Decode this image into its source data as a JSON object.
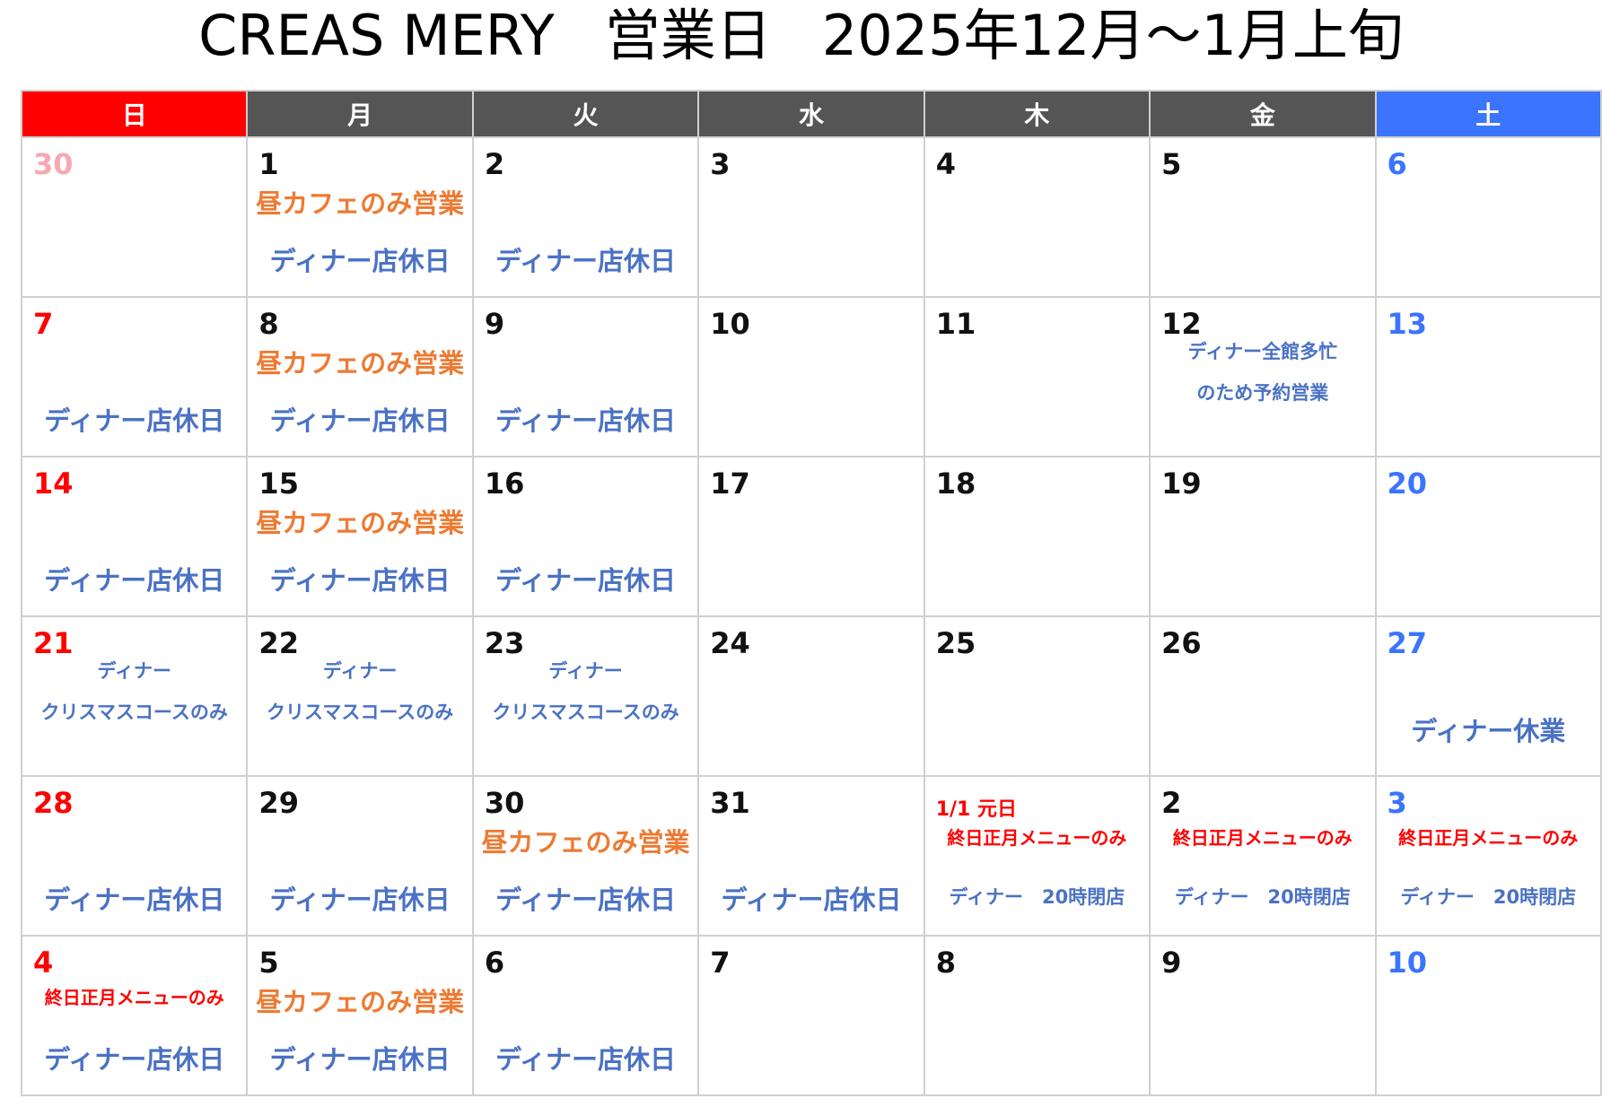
{
  "title": {
    "left": "CREAS MERY",
    "middle": "営業日",
    "right": "2025年12月～1月上旬"
  },
  "weekdays": [
    "日",
    "月",
    "火",
    "水",
    "木",
    "金",
    "土"
  ],
  "colors": {
    "sunday": "#ff0000",
    "weekday_header": "#555555",
    "saturday": "#3a74ff",
    "lunch": "#ee7a32",
    "dinner": "#4a72c4",
    "newyear": "#ff0000",
    "prev_month_day": "#f7a8b5"
  },
  "weeks": [
    [
      {
        "day": "30",
        "day_color": "pink",
        "notes": []
      },
      {
        "day": "1",
        "day_color": "black",
        "notes": [
          {
            "text": "昼カフェのみ営業",
            "color": "orange",
            "size": "lg",
            "row": 1
          },
          {
            "text": "ディナー店休日",
            "color": "navy",
            "size": "lg",
            "row": 3
          }
        ]
      },
      {
        "day": "2",
        "day_color": "black",
        "notes": [
          {
            "text": "ディナー店休日",
            "color": "navy",
            "size": "lg",
            "row": 3
          }
        ]
      },
      {
        "day": "3",
        "day_color": "black",
        "notes": []
      },
      {
        "day": "4",
        "day_color": "black",
        "notes": []
      },
      {
        "day": "5",
        "day_color": "black",
        "notes": []
      },
      {
        "day": "6",
        "day_color": "blue",
        "notes": []
      }
    ],
    [
      {
        "day": "7",
        "day_color": "red",
        "notes": [
          {
            "text": "ディナー店休日",
            "color": "navy",
            "size": "lg",
            "row": 3
          }
        ]
      },
      {
        "day": "8",
        "day_color": "black",
        "notes": [
          {
            "text": "昼カフェのみ営業",
            "color": "orange",
            "size": "lg",
            "row": 1
          },
          {
            "text": "ディナー店休日",
            "color": "navy",
            "size": "lg",
            "row": 3
          }
        ]
      },
      {
        "day": "9",
        "day_color": "black",
        "notes": [
          {
            "text": "ディナー店休日",
            "color": "navy",
            "size": "lg",
            "row": 3
          }
        ]
      },
      {
        "day": "10",
        "day_color": "black",
        "notes": []
      },
      {
        "day": "11",
        "day_color": "black",
        "notes": []
      },
      {
        "day": "12",
        "day_color": "black",
        "notes": [
          {
            "text": "ディナー全館多忙",
            "color": "navy",
            "size": "sm",
            "row": 2
          },
          {
            "text": "のため予約営業",
            "color": "navy",
            "size": "sm",
            "row": 3
          }
        ]
      },
      {
        "day": "13",
        "day_color": "blue",
        "notes": []
      }
    ],
    [
      {
        "day": "14",
        "day_color": "red",
        "notes": [
          {
            "text": "ディナー店休日",
            "color": "navy",
            "size": "lg",
            "row": 3
          }
        ]
      },
      {
        "day": "15",
        "day_color": "black",
        "notes": [
          {
            "text": "昼カフェのみ営業",
            "color": "orange",
            "size": "lg",
            "row": 1
          },
          {
            "text": "ディナー店休日",
            "color": "navy",
            "size": "lg",
            "row": 3
          }
        ]
      },
      {
        "day": "16",
        "day_color": "black",
        "notes": [
          {
            "text": "ディナー店休日",
            "color": "navy",
            "size": "lg",
            "row": 3
          }
        ]
      },
      {
        "day": "17",
        "day_color": "black",
        "notes": []
      },
      {
        "day": "18",
        "day_color": "black",
        "notes": []
      },
      {
        "day": "19",
        "day_color": "black",
        "notes": []
      },
      {
        "day": "20",
        "day_color": "blue",
        "notes": []
      }
    ],
    [
      {
        "day": "21",
        "day_color": "red",
        "notes": [
          {
            "text": "ディナー",
            "color": "navy",
            "size": "sm",
            "row": 1
          },
          {
            "text": "クリスマスコースのみ",
            "color": "navy",
            "size": "sm",
            "row": 2
          }
        ]
      },
      {
        "day": "22",
        "day_color": "black",
        "notes": [
          {
            "text": "ディナー",
            "color": "navy",
            "size": "sm",
            "row": 1
          },
          {
            "text": "クリスマスコースのみ",
            "color": "navy",
            "size": "sm",
            "row": 2
          }
        ]
      },
      {
        "day": "23",
        "day_color": "black",
        "notes": [
          {
            "text": "ディナー",
            "color": "navy",
            "size": "sm",
            "row": 1
          },
          {
            "text": "クリスマスコースのみ",
            "color": "navy",
            "size": "sm",
            "row": 2
          }
        ]
      },
      {
        "day": "24",
        "day_color": "black",
        "notes": []
      },
      {
        "day": "25",
        "day_color": "black",
        "notes": []
      },
      {
        "day": "26",
        "day_color": "black",
        "notes": []
      },
      {
        "day": "27",
        "day_color": "blue",
        "notes": [
          {
            "text": "ディナー休業",
            "color": "navy",
            "size": "lg",
            "row": 4
          }
        ]
      }
    ],
    [
      {
        "day": "28",
        "day_color": "red",
        "notes": [
          {
            "text": "ディナー店休日",
            "color": "navy",
            "size": "lg",
            "row": 3
          }
        ]
      },
      {
        "day": "29",
        "day_color": "black",
        "notes": [
          {
            "text": "ディナー店休日",
            "color": "navy",
            "size": "lg",
            "row": 3
          }
        ]
      },
      {
        "day": "30",
        "day_color": "black",
        "notes": [
          {
            "text": "昼カフェのみ営業",
            "color": "orange",
            "size": "lg",
            "row": 1
          },
          {
            "text": "ディナー店休日",
            "color": "navy",
            "size": "lg",
            "row": 3
          }
        ]
      },
      {
        "day": "31",
        "day_color": "black",
        "notes": [
          {
            "text": "ディナー店休日",
            "color": "navy",
            "size": "lg",
            "row": 3
          }
        ]
      },
      {
        "day": "1/1 元日",
        "day_color": "red",
        "day_small": true,
        "notes": [
          {
            "text": "終日正月メニューのみ",
            "color": "red",
            "size": "xs",
            "row": 1
          },
          {
            "text": "ディナー　20時閉店",
            "color": "navy",
            "size": "sm",
            "row": 3
          }
        ]
      },
      {
        "day": "2",
        "day_color": "black",
        "notes": [
          {
            "text": "終日正月メニューのみ",
            "color": "red",
            "size": "xs",
            "row": 1
          },
          {
            "text": "ディナー　20時閉店",
            "color": "navy",
            "size": "sm",
            "row": 3
          }
        ]
      },
      {
        "day": "3",
        "day_color": "blue",
        "notes": [
          {
            "text": "終日正月メニューのみ",
            "color": "red",
            "size": "xs",
            "row": 1
          },
          {
            "text": "ディナー　20時閉店",
            "color": "navy",
            "size": "sm",
            "row": 3
          }
        ]
      }
    ],
    [
      {
        "day": "4",
        "day_color": "red",
        "notes": [
          {
            "text": "終日正月メニューのみ",
            "color": "red",
            "size": "xs",
            "row": 1
          },
          {
            "text": "ディナー店休日",
            "color": "navy",
            "size": "lg",
            "row": 3
          }
        ]
      },
      {
        "day": "5",
        "day_color": "black",
        "notes": [
          {
            "text": "昼カフェのみ営業",
            "color": "orange",
            "size": "lg",
            "row": 1
          },
          {
            "text": "ディナー店休日",
            "color": "navy",
            "size": "lg",
            "row": 3
          }
        ]
      },
      {
        "day": "6",
        "day_color": "black",
        "notes": [
          {
            "text": "ディナー店休日",
            "color": "navy",
            "size": "lg",
            "row": 3
          }
        ]
      },
      {
        "day": "7",
        "day_color": "black",
        "notes": []
      },
      {
        "day": "8",
        "day_color": "black",
        "notes": []
      },
      {
        "day": "9",
        "day_color": "black",
        "notes": []
      },
      {
        "day": "10",
        "day_color": "blue",
        "notes": []
      }
    ]
  ]
}
